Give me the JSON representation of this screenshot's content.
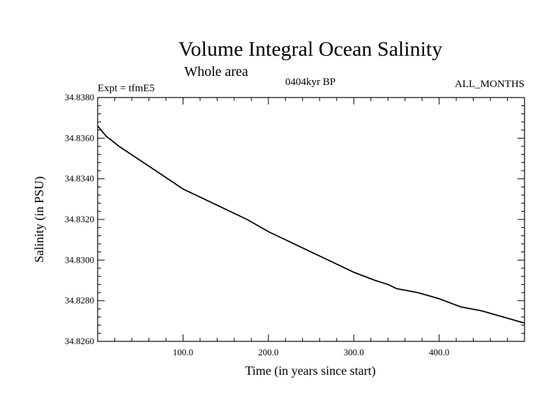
{
  "chart_data": {
    "type": "line",
    "title": "Volume Integral Ocean Salinity",
    "subtitle": "Whole area",
    "header_left": "Expt = tfmE5",
    "header_center": "0404kyr BP",
    "header_right": "ALL_MONTHS",
    "xlabel": "Time (in years since start)",
    "ylabel": "Salinity (in PSU)",
    "xlim": [
      0,
      500
    ],
    "ylim": [
      34.826,
      34.838
    ],
    "x_ticks": [
      100,
      200,
      300,
      400
    ],
    "x_tick_labels": [
      "100.0",
      "200.0",
      "300.0",
      "400.0"
    ],
    "y_ticks": [
      34.826,
      34.828,
      34.83,
      34.832,
      34.834,
      34.836,
      34.838
    ],
    "y_tick_labels": [
      "34.8260",
      "34.8280",
      "34.8300",
      "34.8320",
      "34.8340",
      "34.8360",
      "34.8380"
    ],
    "grid": false,
    "series": [
      {
        "color": "#000000",
        "x": [
          0,
          10,
          25,
          50,
          75,
          100,
          125,
          150,
          175,
          200,
          225,
          250,
          275,
          300,
          325,
          340,
          350,
          375,
          400,
          425,
          450,
          475,
          500
        ],
        "y": [
          34.8366,
          34.8361,
          34.8356,
          34.8349,
          34.8342,
          34.8335,
          34.833,
          34.8325,
          34.832,
          34.8314,
          34.8309,
          34.8304,
          34.8299,
          34.8294,
          34.829,
          34.8288,
          34.8286,
          34.8284,
          34.8281,
          34.8277,
          34.8275,
          34.8272,
          34.8269
        ]
      }
    ]
  }
}
